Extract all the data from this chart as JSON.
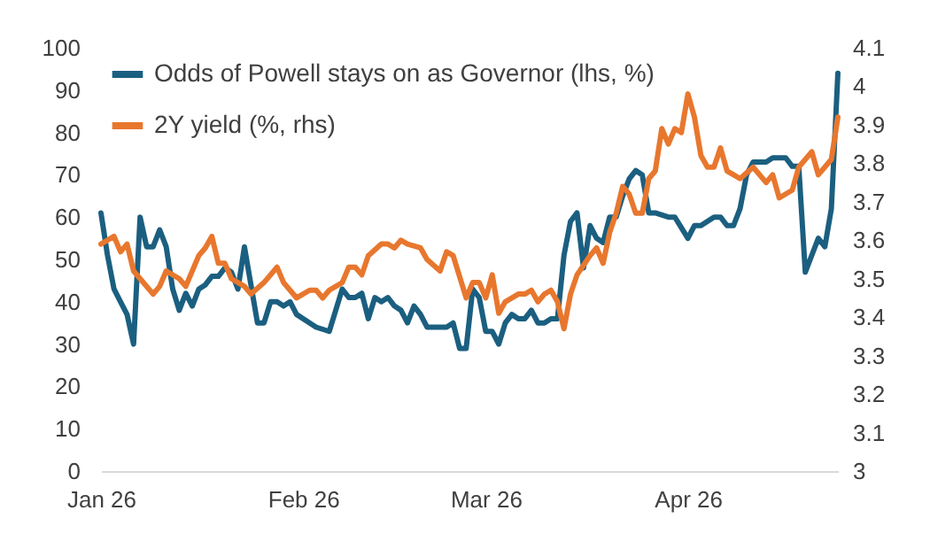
{
  "chart_data": {
    "type": "line",
    "legend": "top left",
    "xlim": [
      "2026-01-01",
      "2026-04-24"
    ],
    "xticks": [
      {
        "value": "2026-01-01",
        "label": "Jan 26"
      },
      {
        "value": "2026-02-01",
        "label": "Feb 26"
      },
      {
        "value": "2026-03-01",
        "label": "Mar 26"
      },
      {
        "value": "2026-04-01",
        "label": "Apr 26"
      }
    ],
    "ylim": [
      0,
      100
    ],
    "yticks": [
      0,
      10,
      20,
      30,
      40,
      50,
      60,
      70,
      80,
      90,
      100
    ],
    "y2lim": [
      3,
      4.1
    ],
    "y2ticks": [
      3,
      3.1,
      3.2,
      3.3,
      3.4,
      3.5,
      3.6,
      3.7,
      3.8,
      3.9,
      4,
      4.1
    ],
    "series": [
      {
        "name": "Odds of Powell stays on as Governor (lhs, %)",
        "color": "#1b5f80",
        "x": [
          "2026-01-01",
          "2026-01-02",
          "2026-01-03",
          "2026-01-04",
          "2026-01-05",
          "2026-01-06",
          "2026-01-07",
          "2026-01-08",
          "2026-01-09",
          "2026-01-10",
          "2026-01-11",
          "2026-01-12",
          "2026-01-13",
          "2026-01-14",
          "2026-01-15",
          "2026-01-16",
          "2026-01-17",
          "2026-01-18",
          "2026-01-19",
          "2026-01-20",
          "2026-01-21",
          "2026-01-22",
          "2026-01-23",
          "2026-01-24",
          "2026-01-25",
          "2026-01-26",
          "2026-01-27",
          "2026-01-28",
          "2026-01-29",
          "2026-01-30",
          "2026-01-31",
          "2026-02-02",
          "2026-02-03",
          "2026-02-05",
          "2026-02-06",
          "2026-02-07",
          "2026-02-08",
          "2026-02-09",
          "2026-02-10",
          "2026-02-11",
          "2026-02-12",
          "2026-02-13",
          "2026-02-14",
          "2026-02-15",
          "2026-02-16",
          "2026-02-17",
          "2026-02-18",
          "2026-02-19",
          "2026-02-20",
          "2026-02-21",
          "2026-02-23",
          "2026-02-24",
          "2026-02-25",
          "2026-02-26",
          "2026-02-27",
          "2026-02-28",
          "2026-03-01",
          "2026-03-02",
          "2026-03-03",
          "2026-03-04",
          "2026-03-05",
          "2026-03-06",
          "2026-03-07",
          "2026-03-08",
          "2026-03-09",
          "2026-03-10",
          "2026-03-11",
          "2026-03-12",
          "2026-03-13",
          "2026-03-14",
          "2026-03-15",
          "2026-03-16",
          "2026-03-17",
          "2026-03-18",
          "2026-03-19",
          "2026-03-20",
          "2026-03-21",
          "2026-03-22",
          "2026-03-23",
          "2026-03-24",
          "2026-03-25",
          "2026-03-26",
          "2026-03-27",
          "2026-03-29",
          "2026-03-30",
          "2026-04-01",
          "2026-04-02",
          "2026-04-03",
          "2026-04-05",
          "2026-04-06",
          "2026-04-07",
          "2026-04-08",
          "2026-04-09",
          "2026-04-10",
          "2026-04-11",
          "2026-04-13",
          "2026-04-14",
          "2026-04-16",
          "2026-04-17",
          "2026-04-18",
          "2026-04-19",
          "2026-04-20",
          "2026-04-21",
          "2026-04-22",
          "2026-04-23",
          "2026-04-24"
        ],
        "values": [
          61,
          51,
          43,
          40,
          37,
          30,
          60,
          53,
          53,
          57,
          53,
          43,
          38,
          42,
          39,
          43,
          44,
          46,
          46,
          48,
          47,
          43,
          53,
          44,
          35,
          35,
          40,
          40,
          39,
          40,
          37,
          35,
          34,
          33,
          38,
          43,
          41,
          41,
          42,
          36,
          41,
          40,
          41,
          39,
          38,
          35,
          39,
          37,
          34,
          34,
          34,
          35,
          29,
          29,
          43,
          41,
          33,
          33,
          30,
          35,
          37,
          36,
          36,
          38,
          35,
          35,
          36,
          36,
          51,
          59,
          61,
          48,
          58,
          55,
          54,
          60,
          60,
          65,
          69,
          71,
          70,
          61,
          61,
          60,
          60,
          55,
          58,
          58,
          60,
          60,
          58,
          58,
          62,
          70,
          73,
          73,
          74,
          74,
          72,
          72,
          47,
          51,
          55,
          53,
          62,
          94
        ]
      },
      {
        "name": "2Y yield (%, rhs)",
        "color": "#e8772e",
        "axis": "y2",
        "x": [
          "2026-01-01",
          "2026-01-02",
          "2026-01-03",
          "2026-01-04",
          "2026-01-05",
          "2026-01-06",
          "2026-01-07",
          "2026-01-09",
          "2026-01-10",
          "2026-01-11",
          "2026-01-13",
          "2026-01-14",
          "2026-01-16",
          "2026-01-17",
          "2026-01-18",
          "2026-01-19",
          "2026-01-20",
          "2026-01-21",
          "2026-01-23",
          "2026-01-24",
          "2026-01-26",
          "2026-01-28",
          "2026-01-29",
          "2026-01-30",
          "2026-01-31",
          "2026-02-02",
          "2026-02-03",
          "2026-02-04",
          "2026-02-05",
          "2026-02-07",
          "2026-02-08",
          "2026-02-09",
          "2026-02-10",
          "2026-02-11",
          "2026-02-13",
          "2026-02-14",
          "2026-02-15",
          "2026-02-16",
          "2026-02-17",
          "2026-02-19",
          "2026-02-20",
          "2026-02-22",
          "2026-02-23",
          "2026-02-24",
          "2026-02-26",
          "2026-02-27",
          "2026-02-28",
          "2026-03-01",
          "2026-03-02",
          "2026-03-03",
          "2026-03-04",
          "2026-03-06",
          "2026-03-07",
          "2026-03-08",
          "2026-03-09",
          "2026-03-10",
          "2026-03-11",
          "2026-03-12",
          "2026-03-13",
          "2026-03-14",
          "2026-03-15",
          "2026-03-17",
          "2026-03-18",
          "2026-03-19",
          "2026-03-20",
          "2026-03-21",
          "2026-03-22",
          "2026-03-23",
          "2026-03-24",
          "2026-03-25",
          "2026-03-26",
          "2026-03-27",
          "2026-03-28",
          "2026-03-29",
          "2026-03-30",
          "2026-03-31",
          "2026-04-01",
          "2026-04-02",
          "2026-04-03",
          "2026-04-04",
          "2026-04-05",
          "2026-04-06",
          "2026-04-07",
          "2026-04-08",
          "2026-04-09",
          "2026-04-11",
          "2026-04-13",
          "2026-04-14",
          "2026-04-15",
          "2026-04-17",
          "2026-04-18",
          "2026-04-20",
          "2026-04-21",
          "2026-04-23",
          "2026-04-24"
        ],
        "values": [
          3.59,
          3.6,
          3.61,
          3.57,
          3.59,
          3.52,
          3.5,
          3.46,
          3.48,
          3.52,
          3.5,
          3.48,
          3.56,
          3.58,
          3.61,
          3.54,
          3.54,
          3.5,
          3.48,
          3.46,
          3.49,
          3.53,
          3.49,
          3.47,
          3.45,
          3.47,
          3.47,
          3.45,
          3.47,
          3.49,
          3.53,
          3.53,
          3.51,
          3.56,
          3.59,
          3.59,
          3.58,
          3.6,
          3.59,
          3.58,
          3.55,
          3.52,
          3.57,
          3.56,
          3.45,
          3.49,
          3.49,
          3.45,
          3.51,
          3.41,
          3.44,
          3.46,
          3.46,
          3.47,
          3.44,
          3.46,
          3.47,
          3.44,
          3.37,
          3.46,
          3.51,
          3.56,
          3.58,
          3.54,
          3.62,
          3.67,
          3.74,
          3.72,
          3.67,
          3.67,
          3.76,
          3.78,
          3.89,
          3.85,
          3.89,
          3.88,
          3.98,
          3.92,
          3.82,
          3.79,
          3.79,
          3.84,
          3.78,
          3.77,
          3.76,
          3.79,
          3.75,
          3.77,
          3.71,
          3.73,
          3.79,
          3.83,
          3.77,
          3.81,
          3.92
        ]
      }
    ]
  }
}
